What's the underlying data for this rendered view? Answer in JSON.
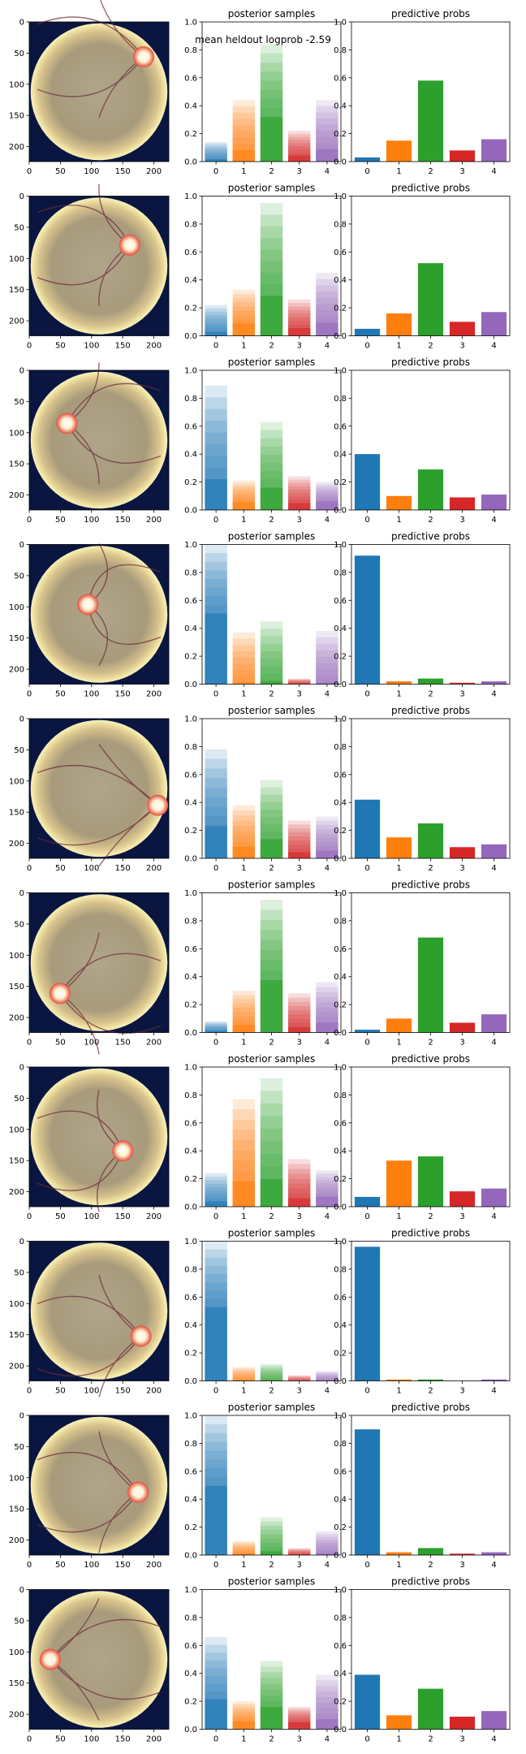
{
  "suptitle": "mean heldout logprob -2.59",
  "panel_titles": {
    "samples": "posterior samples",
    "probs": "predictive probs"
  },
  "image_axis": {
    "x_ticks": [
      "0",
      "50",
      "100",
      "150",
      "200"
    ],
    "y_ticks": [
      "0",
      "50",
      "100",
      "150",
      "200"
    ]
  },
  "bar_axis": {
    "categories": [
      "0",
      "1",
      "2",
      "3",
      "4"
    ],
    "y_ticks": [
      "0.0",
      "0.2",
      "0.4",
      "0.6",
      "0.8",
      "1.0"
    ]
  },
  "colors": [
    "#1f77b4",
    "#ff7f0e",
    "#2ca02c",
    "#d62728",
    "#9467bd"
  ],
  "chart_data": [
    {
      "type": "bar",
      "title": "predictive probs",
      "categories": [
        "0",
        "1",
        "2",
        "3",
        "4"
      ],
      "values": [
        0.03,
        0.15,
        0.58,
        0.08,
        0.16
      ],
      "sample_max": [
        0.14,
        0.44,
        0.84,
        0.22,
        0.44
      ],
      "ylim": [
        0,
        1
      ]
    },
    {
      "type": "bar",
      "title": "predictive probs",
      "categories": [
        "0",
        "1",
        "2",
        "3",
        "4"
      ],
      "values": [
        0.05,
        0.16,
        0.52,
        0.1,
        0.17
      ],
      "sample_max": [
        0.22,
        0.33,
        0.95,
        0.26,
        0.45
      ],
      "ylim": [
        0,
        1
      ]
    },
    {
      "type": "bar",
      "title": "predictive probs",
      "categories": [
        "0",
        "1",
        "2",
        "3",
        "4"
      ],
      "values": [
        0.4,
        0.1,
        0.29,
        0.09,
        0.11
      ],
      "sample_max": [
        0.89,
        0.21,
        0.63,
        0.24,
        0.2
      ],
      "ylim": [
        0,
        1
      ]
    },
    {
      "type": "bar",
      "title": "predictive probs",
      "categories": [
        "0",
        "1",
        "2",
        "3",
        "4"
      ],
      "values": [
        0.92,
        0.02,
        0.04,
        0.01,
        0.02
      ],
      "sample_max": [
        1.0,
        0.37,
        0.45,
        0.04,
        0.38
      ],
      "ylim": [
        0,
        1
      ]
    },
    {
      "type": "bar",
      "title": "predictive probs",
      "categories": [
        "0",
        "1",
        "2",
        "3",
        "4"
      ],
      "values": [
        0.42,
        0.15,
        0.25,
        0.08,
        0.1
      ],
      "sample_max": [
        0.78,
        0.38,
        0.56,
        0.27,
        0.3
      ],
      "ylim": [
        0,
        1
      ]
    },
    {
      "type": "bar",
      "title": "predictive probs",
      "categories": [
        "0",
        "1",
        "2",
        "3",
        "4"
      ],
      "values": [
        0.02,
        0.1,
        0.68,
        0.07,
        0.13
      ],
      "sample_max": [
        0.08,
        0.3,
        0.95,
        0.28,
        0.36
      ],
      "ylim": [
        0,
        1
      ]
    },
    {
      "type": "bar",
      "title": "predictive probs",
      "categories": [
        "0",
        "1",
        "2",
        "3",
        "4"
      ],
      "values": [
        0.07,
        0.33,
        0.36,
        0.11,
        0.13
      ],
      "sample_max": [
        0.24,
        0.77,
        0.92,
        0.34,
        0.26
      ],
      "ylim": [
        0,
        1
      ]
    },
    {
      "type": "bar",
      "title": "predictive probs",
      "categories": [
        "0",
        "1",
        "2",
        "3",
        "4"
      ],
      "values": [
        0.96,
        0.01,
        0.01,
        0.0,
        0.01
      ],
      "sample_max": [
        1.0,
        0.1,
        0.12,
        0.04,
        0.07
      ],
      "ylim": [
        0,
        1
      ]
    },
    {
      "type": "bar",
      "title": "predictive probs",
      "categories": [
        "0",
        "1",
        "2",
        "3",
        "4"
      ],
      "values": [
        0.9,
        0.02,
        0.05,
        0.01,
        0.02
      ],
      "sample_max": [
        1.0,
        0.1,
        0.27,
        0.05,
        0.17
      ],
      "ylim": [
        0,
        1
      ]
    },
    {
      "type": "bar",
      "title": "predictive probs",
      "categories": [
        "0",
        "1",
        "2",
        "3",
        "4"
      ],
      "values": [
        0.39,
        0.1,
        0.29,
        0.09,
        0.13
      ],
      "sample_max": [
        0.66,
        0.2,
        0.49,
        0.16,
        0.39
      ],
      "ylim": [
        0,
        1
      ]
    }
  ]
}
